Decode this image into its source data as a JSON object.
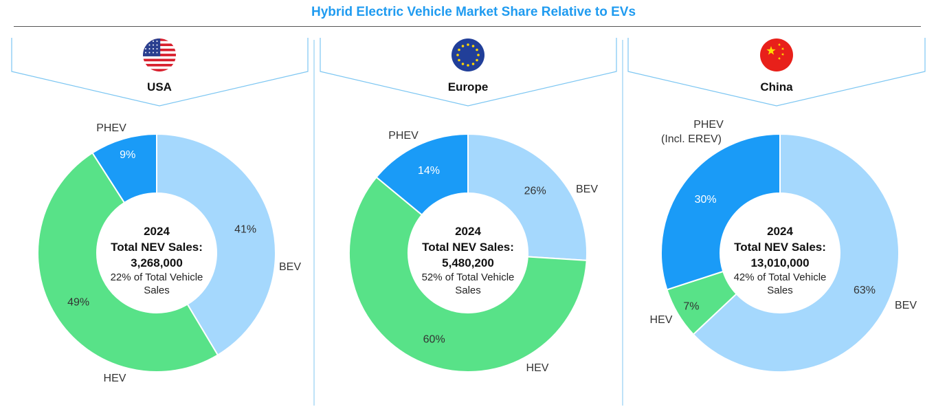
{
  "title": "Hybrid Electric Vehicle Market Share Relative to EVs",
  "colors": {
    "BEV": "#a5d8fd",
    "HEV": "#58e288",
    "PHEV": "#1a9bf7",
    "accent": "#1f9bf0",
    "divider": "#7cc6f2"
  },
  "chart_data": [
    {
      "type": "pie",
      "region": "USA",
      "flag": "usa-flag",
      "series": [
        {
          "name": "BEV",
          "value": 41,
          "label": "41%"
        },
        {
          "name": "HEV",
          "value": 49,
          "label": "49%"
        },
        {
          "name": "PHEV",
          "value": 9,
          "label": "9%"
        }
      ],
      "center": {
        "year": "2024",
        "label": "Total NEV Sales:",
        "total": "3,268,000",
        "share_line1": "22% of Total Vehicle",
        "share_line2": "Sales"
      }
    },
    {
      "type": "pie",
      "region": "Europe",
      "flag": "eu-flag",
      "series": [
        {
          "name": "BEV",
          "value": 26,
          "label": "26%"
        },
        {
          "name": "HEV",
          "value": 60,
          "label": "60%"
        },
        {
          "name": "PHEV",
          "value": 14,
          "label": "14%"
        }
      ],
      "center": {
        "year": "2024",
        "label": "Total NEV Sales:",
        "total": "5,480,200",
        "share_line1": "52% of Total Vehicle",
        "share_line2": "Sales"
      }
    },
    {
      "type": "pie",
      "region": "China",
      "flag": "china-flag",
      "series": [
        {
          "name": "BEV",
          "value": 63,
          "label": "63%"
        },
        {
          "name": "HEV",
          "value": 7,
          "label": "7%"
        },
        {
          "name": "PHEV",
          "value": 30,
          "label": "30%",
          "name_line2": "(Incl. EREV)"
        }
      ],
      "center": {
        "year": "2024",
        "label": "Total NEV Sales:",
        "total": "13,010,000",
        "share_line1": "42% of Total Vehicle",
        "share_line2": "Sales"
      }
    }
  ]
}
